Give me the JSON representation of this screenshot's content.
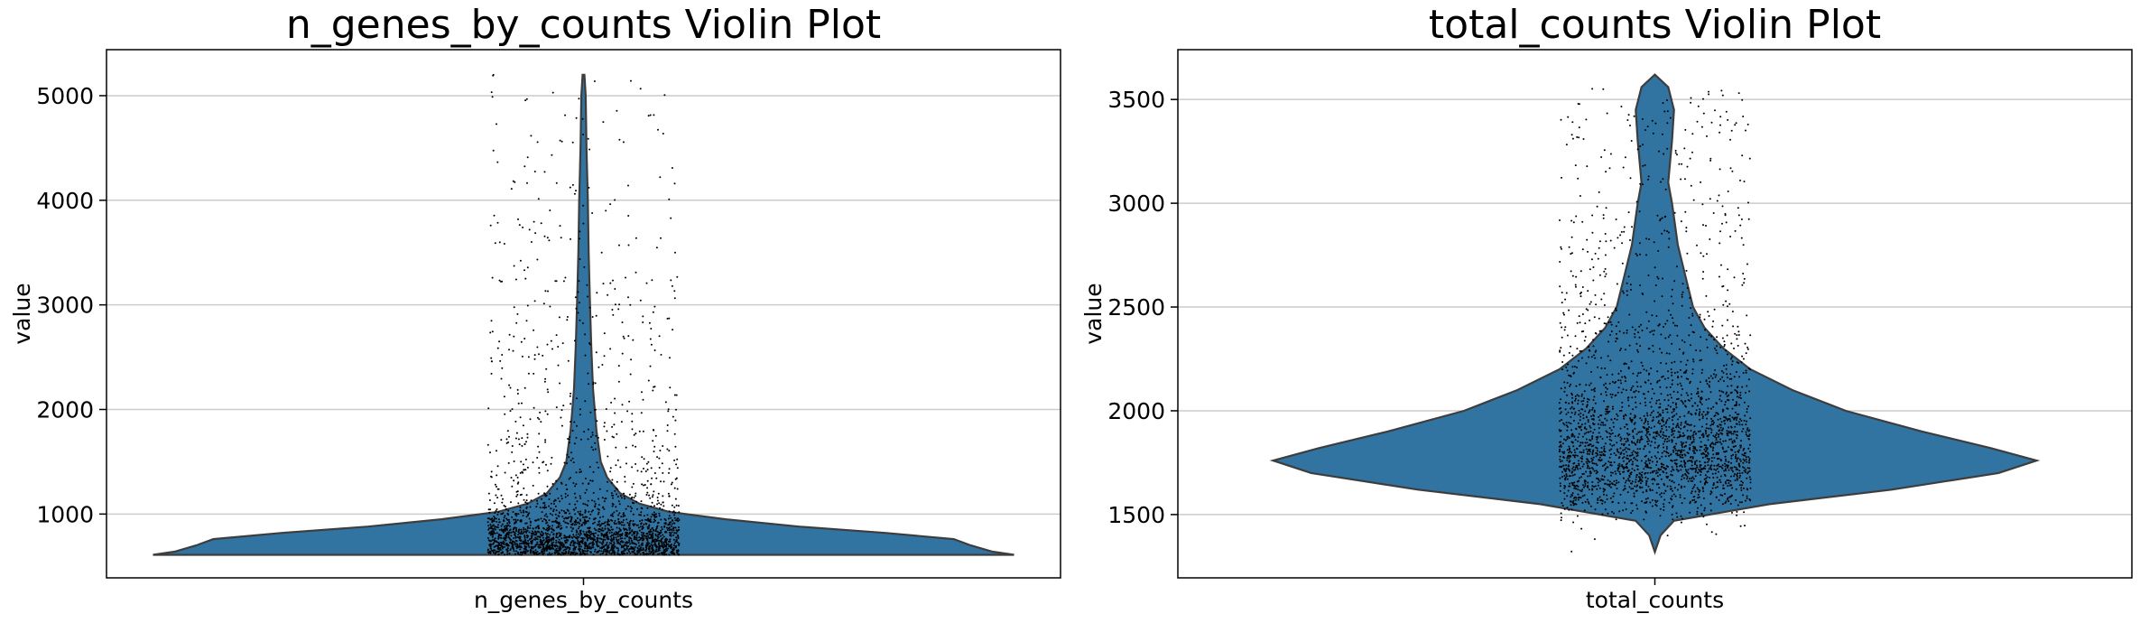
{
  "chart_data": [
    {
      "type": "violin",
      "title": "n_genes_by_counts Violin Plot",
      "xlabel": "",
      "ylabel": "value",
      "categories": [
        "n_genes_by_counts"
      ],
      "ylim": [
        390,
        5440
      ],
      "yticks": [
        1000,
        2000,
        3000,
        4000,
        5000
      ],
      "grid": "horizontal",
      "color": "#3274a1",
      "point_color": "#000000",
      "summary": {
        "min": 610,
        "max": 5200,
        "median": 740
      },
      "density": [
        {
          "y": 610,
          "w": 1.0
        },
        {
          "y": 640,
          "w": 0.95
        },
        {
          "y": 700,
          "w": 0.9
        },
        {
          "y": 760,
          "w": 0.86
        },
        {
          "y": 820,
          "w": 0.7
        },
        {
          "y": 880,
          "w": 0.5
        },
        {
          "y": 950,
          "w": 0.33
        },
        {
          "y": 1020,
          "w": 0.2
        },
        {
          "y": 1100,
          "w": 0.13
        },
        {
          "y": 1200,
          "w": 0.085
        },
        {
          "y": 1350,
          "w": 0.055
        },
        {
          "y": 1500,
          "w": 0.04
        },
        {
          "y": 1800,
          "w": 0.03
        },
        {
          "y": 2200,
          "w": 0.022
        },
        {
          "y": 2600,
          "w": 0.018
        },
        {
          "y": 3000,
          "w": 0.015
        },
        {
          "y": 3500,
          "w": 0.012
        },
        {
          "y": 4000,
          "w": 0.01
        },
        {
          "y": 4500,
          "w": 0.007
        },
        {
          "y": 5000,
          "w": 0.005
        },
        {
          "y": 5200,
          "w": 0.002
        }
      ]
    },
    {
      "type": "violin",
      "title": "total_counts Violin Plot",
      "xlabel": "",
      "ylabel": "value",
      "categories": [
        "total_counts"
      ],
      "ylim": [
        1195,
        3740
      ],
      "yticks": [
        1500,
        2000,
        2500,
        3000,
        3500
      ],
      "grid": "horizontal",
      "color": "#3274a1",
      "point_color": "#000000",
      "summary": {
        "min": 1320,
        "max": 3620,
        "median": 1860
      },
      "density": [
        {
          "y": 1320,
          "w": 0.0
        },
        {
          "y": 1400,
          "w": 0.015
        },
        {
          "y": 1470,
          "w": 0.05
        },
        {
          "y": 1550,
          "w": 0.3
        },
        {
          "y": 1620,
          "w": 0.62
        },
        {
          "y": 1700,
          "w": 0.9
        },
        {
          "y": 1760,
          "w": 1.0
        },
        {
          "y": 1820,
          "w": 0.88
        },
        {
          "y": 1900,
          "w": 0.7
        },
        {
          "y": 2000,
          "w": 0.5
        },
        {
          "y": 2100,
          "w": 0.36
        },
        {
          "y": 2200,
          "w": 0.25
        },
        {
          "y": 2300,
          "w": 0.18
        },
        {
          "y": 2400,
          "w": 0.13
        },
        {
          "y": 2500,
          "w": 0.1
        },
        {
          "y": 2650,
          "w": 0.08
        },
        {
          "y": 2800,
          "w": 0.06
        },
        {
          "y": 3000,
          "w": 0.045
        },
        {
          "y": 3100,
          "w": 0.035
        },
        {
          "y": 3300,
          "w": 0.045
        },
        {
          "y": 3450,
          "w": 0.05
        },
        {
          "y": 3560,
          "w": 0.035
        },
        {
          "y": 3620,
          "w": 0.0
        }
      ]
    }
  ]
}
